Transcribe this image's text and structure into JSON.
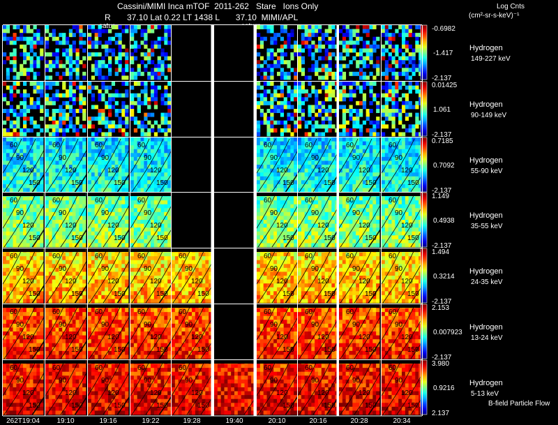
{
  "header": {
    "line1": "Cassini/MIMI Inca mTOF  2011-262   Stare   Ions Only",
    "line2": "R       37.10 Lat 0.22 LT 1438 L       37.10  MIMI/APL",
    "cbar_title": "Log Cnts",
    "cbar_units": "(cm²-sr-s-keV)⁻¹",
    "flow_label": "B-field Particle Flow",
    "saturn_labels": [
      "satur",
      "saturn"
    ]
  },
  "chart_data": {
    "type": "heatmap",
    "title": "Cassini/MIMI Inca mTOF 2011-262 Stare Ions Only",
    "time_labels": [
      "262T19:04",
      "19:10",
      "19:16",
      "19:22",
      "19:28",
      "19:40",
      "20:10",
      "20:16",
      "20:28",
      "20:34"
    ],
    "contour_labels": [
      "60",
      "90",
      "120",
      "150"
    ],
    "colors": {
      "low": "#0000a0",
      "high": "#ff0000"
    },
    "channels": [
      {
        "species": "Hydrogen",
        "energy": "149-227 keV",
        "cb_max": "-0.6982",
        "cb_mid": "-1.417",
        "cb_min": "-2.137",
        "level": 0.12,
        "present": [
          1,
          1,
          1,
          1,
          0,
          0,
          1,
          1,
          1,
          1
        ]
      },
      {
        "species": "Hydrogen",
        "energy": "90-149 keV",
        "cb_max": "0.01425",
        "cb_mid": "1.061",
        "cb_min": "-2.137",
        "level": 0.25,
        "present": [
          1,
          1,
          1,
          1,
          0,
          0,
          1,
          1,
          1,
          1
        ]
      },
      {
        "species": "Hydrogen",
        "energy": "55-90 keV",
        "cb_max": "0.7185",
        "cb_mid": "0.7092",
        "cb_min": "-2.137",
        "level": 0.38,
        "present": [
          1,
          1,
          1,
          1,
          0,
          0,
          1,
          1,
          1,
          1
        ]
      },
      {
        "species": "Hydrogen",
        "energy": "35-55 keV",
        "cb_max": "1.149",
        "cb_mid": "0.4938",
        "cb_min": "-2.137",
        "level": 0.5,
        "present": [
          1,
          1,
          1,
          1,
          0,
          0,
          1,
          1,
          1,
          1
        ]
      },
      {
        "species": "Hydrogen",
        "energy": "24-35 keV",
        "cb_max": "1.494",
        "cb_mid": "0.3214",
        "cb_min": "-2.137",
        "level": 0.68,
        "present": [
          1,
          1,
          1,
          1,
          1,
          0,
          1,
          1,
          1,
          1
        ]
      },
      {
        "species": "Hydrogen",
        "energy": "13-24 keV",
        "cb_max": "2.153",
        "cb_mid": "0.007923",
        "cb_min": "-2.137",
        "level": 0.82,
        "present": [
          1,
          1,
          1,
          1,
          1,
          0,
          1,
          1,
          1,
          1
        ]
      },
      {
        "species": "Hydrogen",
        "energy": "5-13 keV",
        "cb_max": "3.980",
        "cb_mid": "0.9216",
        "cb_min": "2.137",
        "level": 0.88,
        "present": [
          1,
          1,
          1,
          1,
          1,
          1,
          1,
          1,
          1,
          1
        ]
      }
    ]
  }
}
